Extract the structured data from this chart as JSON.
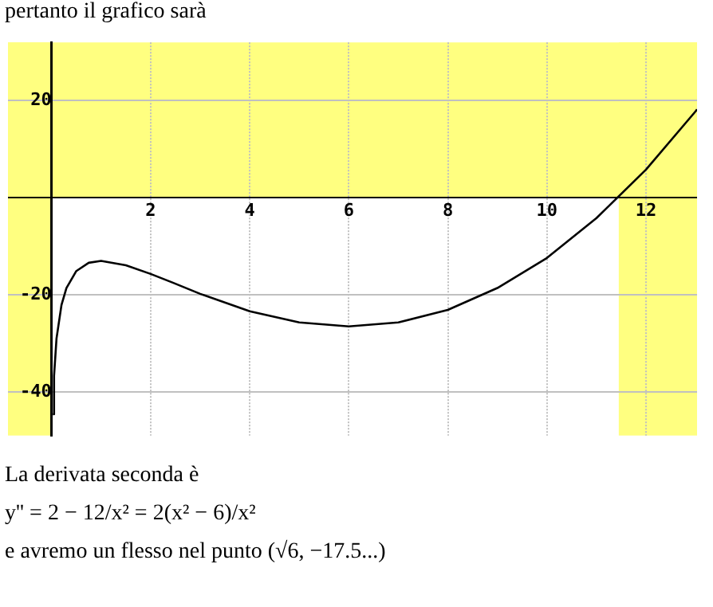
{
  "chart_data": {
    "type": "line",
    "title": "pertanto il grafico sarà",
    "x": [
      0.025,
      0.05,
      0.1,
      0.2,
      0.3,
      0.5,
      0.75,
      1,
      1.5,
      2,
      2.449,
      3,
      4,
      5,
      6,
      7,
      8,
      9,
      10,
      11,
      12,
      13,
      13.03
    ],
    "series": [
      {
        "color": "#000000",
        "values": [
          -44.6,
          -36.7,
          -29.0,
          -22.1,
          -18.6,
          -15.1,
          -13.4,
          -13.0,
          -13.9,
          -15.7,
          -17.5,
          -19.8,
          -23.4,
          -25.7,
          -26.5,
          -25.7,
          -23.1,
          -18.6,
          -12.4,
          -4.2,
          5.8,
          17.8,
          18.2
        ]
      }
    ],
    "xlim": [
      -0.88,
      13.03
    ],
    "ylim": [
      -49,
      32
    ],
    "xticks": [
      2,
      4,
      6,
      8,
      10,
      12
    ],
    "yticks": [
      -40,
      -20,
      20
    ],
    "grid": true,
    "legend": false,
    "marker": "none",
    "line_style": "solid",
    "bands": [
      {
        "axis": "x",
        "from": -0.88,
        "to": 0,
        "color": "#ffff80"
      },
      {
        "axis": "y",
        "from": 0,
        "to": 32,
        "color": "#ffff80"
      },
      {
        "axis": "x",
        "from": 11.45,
        "to": 13.03,
        "color": "#ffff80"
      }
    ],
    "annotations": [
      "La derivata seconda è",
      "y'' = 2 − 12/x² = 2(x² − 6)/x²",
      "e avremo un flesso nel punto (√6, −17.5...)"
    ]
  }
}
